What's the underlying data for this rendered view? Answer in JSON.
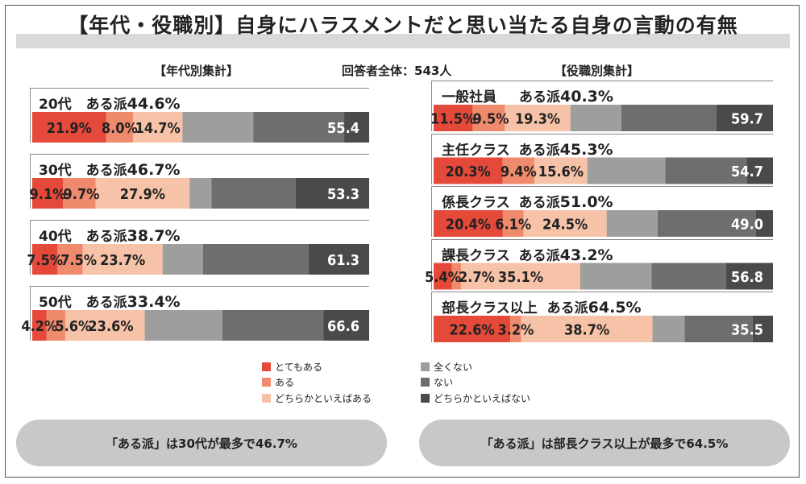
{
  "title": "【年代・役職別】自身にハラスメントだと思い当たる自身の言動の有無",
  "respondents": "回答者全体：543人",
  "colors": {
    "totemo_aru": "#e5493a",
    "aru": "#ef8a6c",
    "dochira_aru": "#f6c2a8",
    "mattaku_nai": "#9e9e9e",
    "nai": "#6e6e6e",
    "dochira_nai": "#4a4a4a"
  },
  "legend": [
    {
      "key": "totemo_aru",
      "label": "とてもある"
    },
    {
      "key": "aru",
      "label": "ある"
    },
    {
      "key": "dochira_aru",
      "label": "どちらかといえばある"
    },
    {
      "key": "mattaku_nai",
      "label": "全くない"
    },
    {
      "key": "nai",
      "label": "ない"
    },
    {
      "key": "dochira_nai",
      "label": "どちらかといえばない"
    }
  ],
  "chart_data": [
    {
      "type": "bar",
      "title": "【年代別集計】",
      "categories": [
        "20代",
        "30代",
        "40代",
        "50代"
      ],
      "aru_ha": [
        {
          "label": "ある派",
          "value": "44.6%"
        },
        {
          "label": "ある派",
          "value": "46.7%"
        },
        {
          "label": "ある派",
          "value": "38.7%"
        },
        {
          "label": "ある派",
          "value": "33.4%"
        }
      ],
      "series": [
        {
          "name": "とてもある",
          "values": [
            21.9,
            9.1,
            7.5,
            4.2
          ]
        },
        {
          "name": "ある",
          "values": [
            8.0,
            9.7,
            7.5,
            5.6
          ]
        },
        {
          "name": "どちらかといえばある",
          "values": [
            14.7,
            27.9,
            23.7,
            23.6
          ]
        },
        {
          "name": "全くない",
          "values": [
            21.0,
            6.5,
            12.0,
            23.0
          ]
        },
        {
          "name": "ない",
          "values": [
            27.0,
            25.0,
            31.3,
            30.0
          ]
        },
        {
          "name": "どちらかといえばない",
          "values": [
            7.4,
            21.8,
            18.0,
            13.6
          ]
        }
      ],
      "nai_ha": [
        "55.4",
        "53.3",
        "61.3",
        "66.6"
      ],
      "segment_labels": [
        [
          "21.9%",
          "8.0%",
          "14.7%"
        ],
        [
          "9.1%",
          "9.7%",
          "27.9%"
        ],
        [
          "7.5%",
          "7.5%",
          "23.7%"
        ],
        [
          "4.2%",
          "5.6%",
          "23.6%"
        ]
      ],
      "summary": "「ある派」は30代が最多で46.7%"
    },
    {
      "type": "bar",
      "title": "【役職別集計】",
      "categories": [
        "一般社員",
        "主任クラス",
        "係長クラス",
        "課長クラス",
        "部長クラス以上"
      ],
      "aru_ha": [
        {
          "label": "ある派",
          "value": "40.3%"
        },
        {
          "label": "ある派",
          "value": "45.3%"
        },
        {
          "label": "ある派",
          "value": "51.0%"
        },
        {
          "label": "ある派",
          "value": "43.2%"
        },
        {
          "label": "ある派",
          "value": "64.5%"
        }
      ],
      "series": [
        {
          "name": "とてもある",
          "values": [
            11.5,
            20.3,
            20.4,
            5.4,
            22.6
          ]
        },
        {
          "name": "ある",
          "values": [
            9.5,
            9.4,
            6.1,
            2.7,
            3.2
          ]
        },
        {
          "name": "どちらかといえばある",
          "values": [
            19.3,
            15.6,
            24.5,
            35.1,
            38.7
          ]
        },
        {
          "name": "全くない",
          "values": [
            15.0,
            23.0,
            15.0,
            21.0,
            9.5
          ]
        },
        {
          "name": "ない",
          "values": [
            28.0,
            24.0,
            29.0,
            22.0,
            20.0
          ]
        },
        {
          "name": "どちらかといえばない",
          "values": [
            16.7,
            7.7,
            5.0,
            13.8,
            6.0
          ]
        }
      ],
      "nai_ha": [
        "59.7",
        "54.7",
        "49.0",
        "56.8",
        "35.5"
      ],
      "segment_labels": [
        [
          "11.5%",
          "9.5%",
          "19.3%"
        ],
        [
          "20.3%",
          "9.4%",
          "15.6%"
        ],
        [
          "20.4%",
          "6.1%",
          "24.5%"
        ],
        [
          "5.4%",
          "2.7%",
          "35.1%"
        ],
        [
          "22.6%",
          "3.2%",
          "38.7%"
        ]
      ],
      "summary": "「ある派」は部長クラス以上が最多で64.5%"
    }
  ]
}
